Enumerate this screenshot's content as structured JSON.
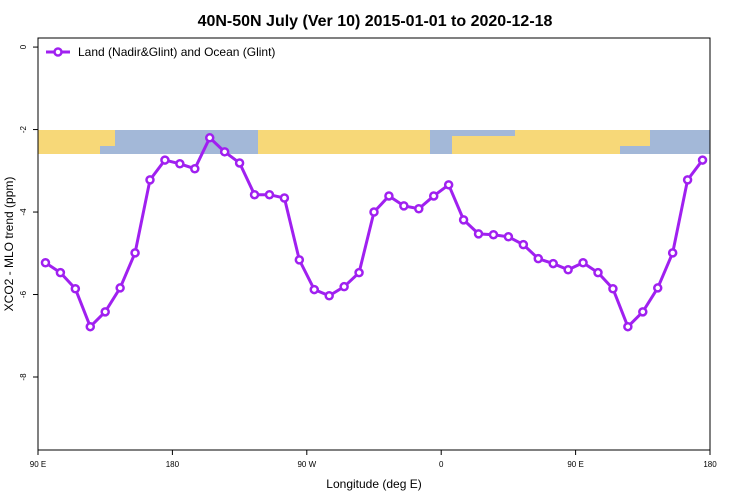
{
  "chart_data": {
    "type": "line",
    "title": "40N-50N July (Ver 10)   2015-01-01 to 2020-12-18",
    "x_label": "Longitude (deg E)",
    "y_label": "XCO2 - MLO trend (ppm)",
    "x": [
      95,
      105,
      115,
      125,
      135,
      145,
      155,
      165,
      175,
      185,
      195,
      205,
      215,
      225,
      235,
      245,
      255,
      265,
      275,
      285,
      295,
      305,
      315,
      325,
      335,
      345,
      355,
      365,
      375,
      385,
      395,
      405,
      415,
      425,
      435,
      445,
      455,
      465,
      475,
      485,
      495,
      505,
      515,
      525,
      535
    ],
    "series": [
      {
        "name": "Land (Nadir&Glint) and Ocean (Glint)",
        "color": "#a020f0",
        "values": [
          -5.23,
          -5.47,
          -5.86,
          -6.78,
          -6.42,
          -5.84,
          -4.99,
          -3.22,
          -2.74,
          -2.83,
          -2.95,
          -2.2,
          -2.54,
          -2.81,
          -3.58,
          -3.58,
          -3.66,
          -5.16,
          -5.88,
          -6.03,
          -5.81,
          -5.47,
          -4.0,
          -3.61,
          -3.85,
          -3.92,
          -3.61,
          -3.34,
          -4.19,
          -4.53,
          -4.55,
          -4.6,
          -4.79,
          -5.13,
          -5.25,
          -5.4,
          -5.23,
          -5.47,
          -5.86,
          -6.78,
          -6.42,
          -5.84,
          -4.99,
          -3.22,
          -2.74
        ]
      }
    ],
    "xlim": [
      90,
      540
    ],
    "xticks": [
      {
        "value": 90,
        "label": "90 E"
      },
      180,
      {
        "value": 270,
        "label": "90 W"
      },
      {
        "value": 360,
        "label": "0"
      },
      {
        "value": 450,
        "label": "90 E"
      },
      {
        "value": 540,
        "label": "180"
      }
    ],
    "ylim": [
      -9.77,
      0.22
    ],
    "yticks": [
      0,
      -2,
      -4,
      -6,
      -8
    ],
    "legend": "top-left"
  }
}
